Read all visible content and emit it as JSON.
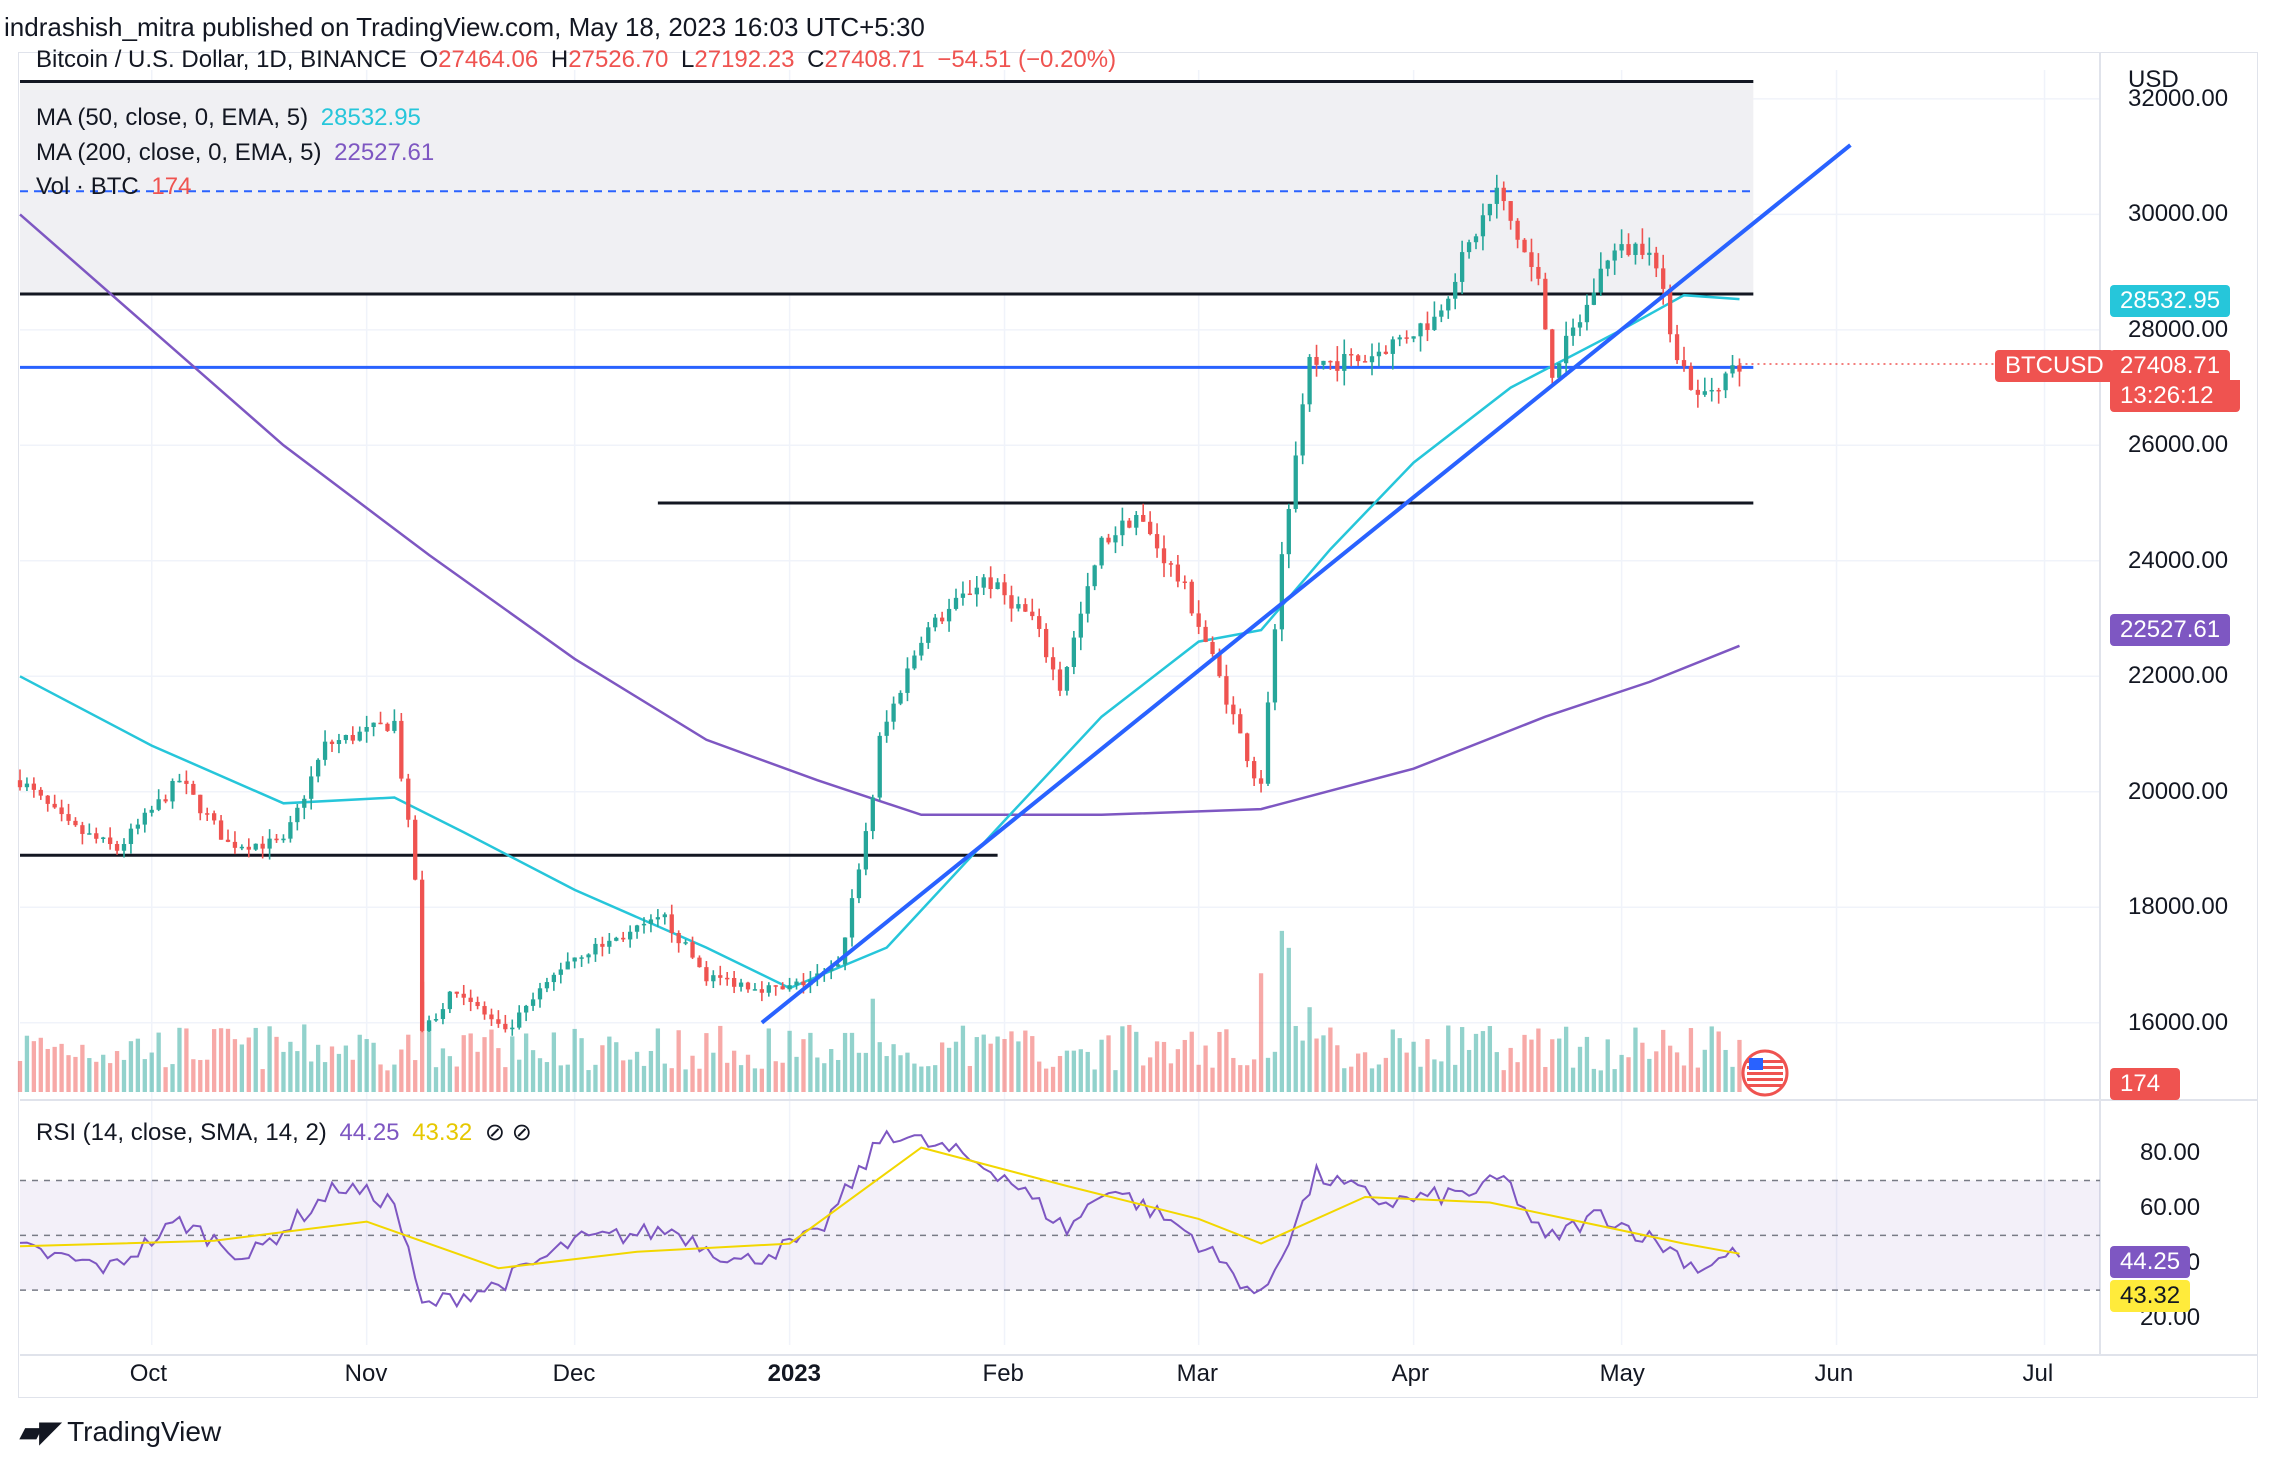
{
  "header": {
    "publisher_text": "indrashish_mitra published on TradingView.com, May 18, 2023 16:03 UTC+5:30"
  },
  "legend": {
    "symbol": "Bitcoin / U.S. Dollar, 1D, BINANCE",
    "ohlc": {
      "o_label": "O",
      "o": "27464.06",
      "h_label": "H",
      "h": "27526.70",
      "l_label": "L",
      "l": "27192.23",
      "c_label": "C",
      "c": "27408.71",
      "change": "−54.51 (−0.20%)"
    },
    "ma50_label": "MA (50, close, 0, EMA, 5)",
    "ma50_value": "28532.95",
    "ma200_label": "MA (200, close, 0, EMA, 5)",
    "ma200_value": "22527.61",
    "vol_label": "Vol · BTC",
    "vol_value": "174",
    "rsi_label": "RSI (14, close, SMA, 14, 2)",
    "rsi_value": "44.25",
    "rsi_sma_value": "43.32",
    "rsi_icons": "⊘  ⊘"
  },
  "badges": {
    "ma50": "28532.95",
    "symbol_tag": "BTCUSD",
    "price": "27408.71",
    "countdown": "13:26:12",
    "ma200": "22527.61",
    "volume": "174",
    "rsi": "44.25",
    "rsi_sma": "43.32"
  },
  "colors": {
    "up": "#26a69a",
    "down": "#ef5350",
    "ma50": "#26c6da",
    "ma200": "#7e57c2",
    "trend": "#2962ff",
    "rsi": "#7e57c2",
    "rsi_sma": "#ffeb3b"
  },
  "footer": {
    "brand": "TradingView",
    "logo_icon": "tradingview-logo-icon"
  },
  "chart_data": {
    "type": "line",
    "subtype": "candlestick-with-volume-and-rsi",
    "currency_label": "USD",
    "price_ticks": [
      "32000.00",
      "30000.00",
      "28000.00",
      "26000.00",
      "24000.00",
      "22000.00",
      "20000.00",
      "18000.00",
      "16000.00"
    ],
    "price_range": [
      14800,
      32500
    ],
    "time_ticks": [
      {
        "label": "Oct",
        "bold": false,
        "date": "2022-10-01"
      },
      {
        "label": "Nov",
        "bold": false,
        "date": "2022-11-01"
      },
      {
        "label": "Dec",
        "bold": false,
        "date": "2022-12-01"
      },
      {
        "label": "2023",
        "bold": true,
        "date": "2023-01-01"
      },
      {
        "label": "Feb",
        "bold": false,
        "date": "2023-02-01"
      },
      {
        "label": "Mar",
        "bold": false,
        "date": "2023-03-01"
      },
      {
        "label": "Apr",
        "bold": false,
        "date": "2023-04-01"
      },
      {
        "label": "May",
        "bold": false,
        "date": "2023-05-01"
      },
      {
        "label": "Jun",
        "bold": false,
        "date": "2023-06-01"
      },
      {
        "label": "Jul",
        "bold": false,
        "date": "2023-07-01"
      }
    ],
    "time_range": [
      "2022-09-12",
      "2023-07-09"
    ],
    "price_anchors": [
      [
        "2022-09-12",
        20200
      ],
      [
        "2022-09-19",
        19400
      ],
      [
        "2022-09-26",
        19000
      ],
      [
        "2022-10-05",
        20200
      ],
      [
        "2022-10-12",
        19100
      ],
      [
        "2022-10-20",
        19100
      ],
      [
        "2022-10-26",
        20800
      ],
      [
        "2022-11-05",
        21200
      ],
      [
        "2022-11-08",
        18500
      ],
      [
        "2022-11-09",
        15800
      ],
      [
        "2022-11-14",
        16600
      ],
      [
        "2022-11-21",
        15800
      ],
      [
        "2022-11-30",
        17100
      ],
      [
        "2022-12-14",
        17800
      ],
      [
        "2022-12-20",
        16800
      ],
      [
        "2022-12-31",
        16550
      ],
      [
        "2023-01-08",
        16950
      ],
      [
        "2023-01-13",
        19900
      ],
      [
        "2023-01-14",
        20900
      ],
      [
        "2023-01-20",
        22700
      ],
      [
        "2023-01-29",
        23700
      ],
      [
        "2023-02-05",
        23000
      ],
      [
        "2023-02-09",
        21800
      ],
      [
        "2023-02-15",
        24300
      ],
      [
        "2023-02-20",
        24800
      ],
      [
        "2023-02-27",
        23500
      ],
      [
        "2023-03-03",
        22300
      ],
      [
        "2023-03-09",
        20300
      ],
      [
        "2023-03-10",
        20200
      ],
      [
        "2023-03-13",
        24100
      ],
      [
        "2023-03-17",
        27400
      ],
      [
        "2023-03-25",
        27500
      ],
      [
        "2023-04-04",
        28200
      ],
      [
        "2023-04-10",
        29700
      ],
      [
        "2023-04-13",
        30400
      ],
      [
        "2023-04-19",
        28800
      ],
      [
        "2023-04-21",
        27300
      ],
      [
        "2023-04-26",
        28400
      ],
      [
        "2023-04-29",
        29300
      ],
      [
        "2023-05-05",
        29500
      ],
      [
        "2023-05-09",
        27600
      ],
      [
        "2023-05-12",
        26800
      ],
      [
        "2023-05-18",
        27408.71
      ]
    ],
    "horizontal_levels": [
      {
        "price": 32300,
        "color": "#131722",
        "style": "solid",
        "from": "2022-09-12",
        "to": "2023-05-20"
      },
      {
        "price": 30400,
        "color": "#2962ff",
        "style": "dashed",
        "from": "2022-09-12",
        "to": "2023-05-20"
      },
      {
        "price": 28620,
        "color": "#131722",
        "style": "solid",
        "from": "2022-09-12",
        "to": "2023-05-20"
      },
      {
        "price": 27350,
        "color": "#2962ff",
        "style": "solid",
        "from": "2022-09-12",
        "to": "2023-05-20"
      },
      {
        "price": 25000,
        "color": "#131722",
        "style": "solid",
        "from": "2022-12-13",
        "to": "2023-05-20"
      },
      {
        "price": 18900,
        "color": "#131722",
        "style": "solid",
        "from": "2022-09-12",
        "to": "2023-01-31"
      }
    ],
    "shaded_zone": {
      "from_price": 28620,
      "to_price": 32300,
      "color": "#f0f0f3"
    },
    "trendline": {
      "start": [
        "2022-12-28",
        16000
      ],
      "end": [
        "2023-06-03",
        31200
      ],
      "color": "#2962ff"
    },
    "ma50_anchors": [
      [
        "2022-09-12",
        22000
      ],
      [
        "2022-10-01",
        20800
      ],
      [
        "2022-10-20",
        19800
      ],
      [
        "2022-11-05",
        19900
      ],
      [
        "2022-11-15",
        19300
      ],
      [
        "2022-12-01",
        18300
      ],
      [
        "2022-12-20",
        17300
      ],
      [
        "2023-01-01",
        16600
      ],
      [
        "2023-01-15",
        17300
      ],
      [
        "2023-02-01",
        19500
      ],
      [
        "2023-02-15",
        21300
      ],
      [
        "2023-03-01",
        22600
      ],
      [
        "2023-03-10",
        22800
      ],
      [
        "2023-03-20",
        24200
      ],
      [
        "2023-04-01",
        25700
      ],
      [
        "2023-04-15",
        27000
      ],
      [
        "2023-05-01",
        28000
      ],
      [
        "2023-05-10",
        28600
      ],
      [
        "2023-05-18",
        28532.95
      ]
    ],
    "ma200_anchors": [
      [
        "2022-09-12",
        30000
      ],
      [
        "2022-10-01",
        28000
      ],
      [
        "2022-10-20",
        26000
      ],
      [
        "2022-11-10",
        24100
      ],
      [
        "2022-12-01",
        22300
      ],
      [
        "2022-12-20",
        20900
      ],
      [
        "2023-01-05",
        20200
      ],
      [
        "2023-01-20",
        19600
      ],
      [
        "2023-02-15",
        19600
      ],
      [
        "2023-03-10",
        19700
      ],
      [
        "2023-04-01",
        20400
      ],
      [
        "2023-04-20",
        21300
      ],
      [
        "2023-05-05",
        21900
      ],
      [
        "2023-05-18",
        22527.61
      ]
    ],
    "volume_range": [
      0,
      25000
    ],
    "volume_spikes": [
      [
        "2022-11-09",
        13000
      ],
      [
        "2022-11-10",
        8000
      ],
      [
        "2023-01-13",
        11000
      ],
      [
        "2023-03-10",
        14000
      ],
      [
        "2023-03-13",
        19000
      ],
      [
        "2023-03-14",
        17000
      ],
      [
        "2023-03-17",
        10000
      ]
    ],
    "rsi_ticks": [
      "80.00",
      "60.00",
      "40.00",
      "20.00"
    ],
    "rsi_range": [
      10,
      95
    ],
    "rsi_bands": [
      30,
      50,
      70
    ],
    "rsi_anchors": [
      [
        "2022-09-12",
        45
      ],
      [
        "2022-09-25",
        38
      ],
      [
        "2022-10-05",
        55
      ],
      [
        "2022-10-15",
        42
      ],
      [
        "2022-10-28",
        68
      ],
      [
        "2022-11-05",
        62
      ],
      [
        "2022-11-09",
        24
      ],
      [
        "2022-11-20",
        32
      ],
      [
        "2022-12-01",
        48
      ],
      [
        "2022-12-15",
        52
      ],
      [
        "2022-12-25",
        40
      ],
      [
        "2023-01-05",
        50
      ],
      [
        "2023-01-15",
        88
      ],
      [
        "2023-01-25",
        80
      ],
      [
        "2023-02-01",
        72
      ],
      [
        "2023-02-10",
        52
      ],
      [
        "2023-02-16",
        68
      ],
      [
        "2023-02-27",
        52
      ],
      [
        "2023-03-10",
        27
      ],
      [
        "2023-03-18",
        72
      ],
      [
        "2023-03-28",
        62
      ],
      [
        "2023-04-10",
        66
      ],
      [
        "2023-04-14",
        71
      ],
      [
        "2023-04-20",
        48
      ],
      [
        "2023-04-28",
        58
      ],
      [
        "2023-05-08",
        45
      ],
      [
        "2023-05-12",
        38
      ],
      [
        "2023-05-18",
        44.25
      ]
    ],
    "rsi_sma_anchors": [
      [
        "2022-09-12",
        46
      ],
      [
        "2022-10-10",
        48
      ],
      [
        "2022-11-01",
        55
      ],
      [
        "2022-11-20",
        38
      ],
      [
        "2022-12-10",
        44
      ],
      [
        "2023-01-01",
        47
      ],
      [
        "2023-01-20",
        82
      ],
      [
        "2023-02-10",
        68
      ],
      [
        "2023-03-01",
        56
      ],
      [
        "2023-03-10",
        47
      ],
      [
        "2023-03-25",
        64
      ],
      [
        "2023-04-12",
        62
      ],
      [
        "2023-04-25",
        55
      ],
      [
        "2023-05-10",
        47
      ],
      [
        "2023-05-18",
        43.32
      ]
    ]
  }
}
